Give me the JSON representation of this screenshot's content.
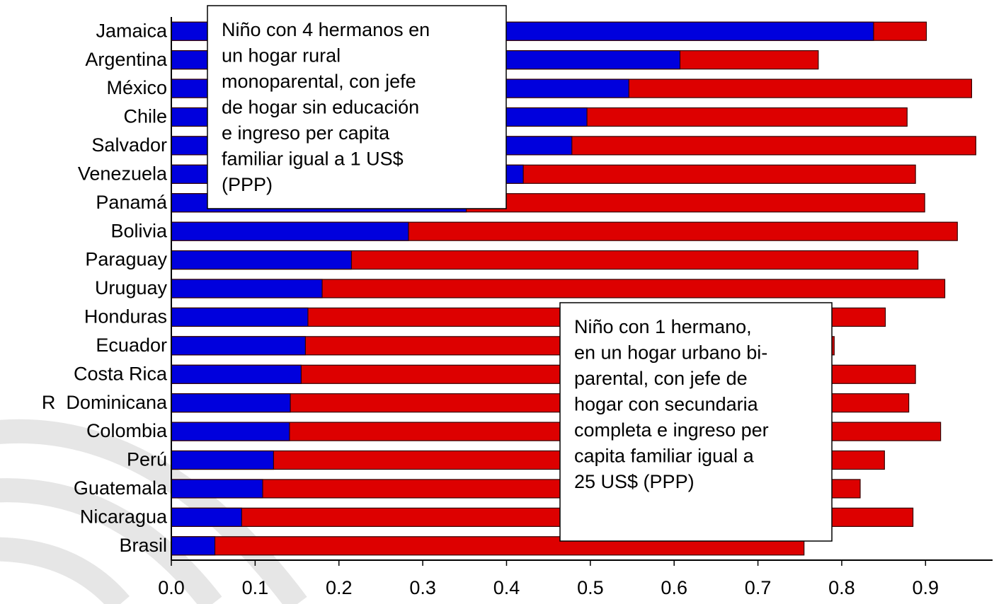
{
  "chart_data": {
    "type": "bar",
    "orientation": "horizontal",
    "overlay": true,
    "categories": [
      "Jamaica",
      "Argentina",
      "México",
      "Chile",
      "Salvador",
      "Venezuela",
      "Panamá",
      "Bolivia",
      "Paraguay",
      "Uruguay",
      "Honduras",
      "Ecuador",
      "Costa Rica",
      "R  Dominicana",
      "Colombia",
      "Perú",
      "Guatemala",
      "Nicaragua",
      "Brasil"
    ],
    "series": [
      {
        "color": "#dd0000",
        "values": [
          0.901,
          0.772,
          0.955,
          0.878,
          0.96,
          0.888,
          0.899,
          0.938,
          0.891,
          0.923,
          0.852,
          0.791,
          0.888,
          0.88,
          0.918,
          0.851,
          0.822,
          0.885,
          0.755
        ]
      },
      {
        "color": "#0000dd",
        "values": [
          0.838,
          0.607,
          0.546,
          0.496,
          0.478,
          0.42,
          0.352,
          0.283,
          0.215,
          0.18,
          0.163,
          0.16,
          0.155,
          0.142,
          0.141,
          0.122,
          0.109,
          0.084,
          0.052
        ]
      }
    ],
    "xlim": [
      0,
      0.98
    ],
    "xticks": [
      {
        "value": 0,
        "label": "0.0"
      },
      0.1,
      0.2,
      0.3,
      0.4,
      0.5,
      0.6,
      0.7,
      0.8,
      0.9
    ],
    "annotations": [
      {
        "lines": [
          "Niño con 4 hermanos en",
          "un hogar rural",
          "monoparental, con jefe",
          "de hogar sin educación",
          "e ingreso per capita",
          "familiar igual a 1 US$",
          "(PPP)"
        ]
      },
      {
        "lines": [
          "Niño con 1 hermano,",
          "en un hogar urbano bi-",
          "parental, con jefe de",
          "hogar con secundaria",
          "completa e ingreso per",
          "capita familiar igual a",
          "25 US$ (PPP)"
        ]
      }
    ]
  }
}
